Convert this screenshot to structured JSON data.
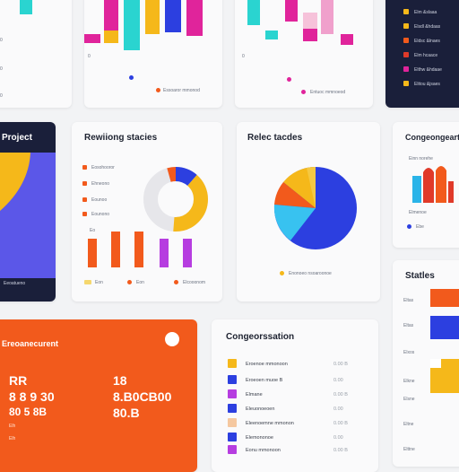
{
  "colors": {
    "orange": "#f25a1c",
    "blue": "#2c3fe0",
    "yellow": "#f5b81a",
    "magenta": "#e0249b",
    "purple": "#b63de0",
    "cyan": "#2ad4d0",
    "navy": "#1a1f3a",
    "lightblue": "#38c2f0",
    "grey": "#e6e6ea"
  },
  "cards": {
    "top_left": {
      "axis_ticks": [
        "0",
        "0",
        "0"
      ]
    },
    "top_mid": {
      "legend": [
        "",
        "Essoaror mmonod"
      ]
    },
    "top_right": {
      "legend": [
        "",
        "Entuoc mmnoeod"
      ]
    },
    "dark_list": {
      "items": [
        "Elm &slaaa",
        "Elsdl &hdaas",
        "Eldsc &lnaes",
        "Elm hcaace",
        "Elthw &hdaae",
        "Elitou &jsaes"
      ]
    },
    "project": {
      "title": "Project",
      "footer": "Eeoatueno"
    },
    "revenue": {
      "title": "Rewiiong stacies",
      "legend": [
        "Eosohooror",
        "Ehneono",
        "Eounoo",
        "Eounono"
      ],
      "axis": "Eo",
      "footer": [
        "Eon",
        "Eon",
        "Elcooonom"
      ]
    },
    "market": {
      "title": "Relec tacdes",
      "footer": "Enonoeo nsoaroonoe"
    },
    "comparison": {
      "title": "Congeongeartio",
      "label": "Einn norehe",
      "footer": [
        "Elmenoe",
        "Ebe"
      ]
    },
    "orange_panel": {
      "title": "Ereoanecurent",
      "left_big": [
        "RR",
        "8 8 9 30",
        "80 5 8B"
      ],
      "left_small": [
        "Elh",
        "Elh"
      ],
      "right_big": [
        "18",
        "8.B0CB00",
        "80.B"
      ]
    },
    "categories": {
      "title": "Congeorssation",
      "rows": [
        {
          "label": "Eroenoe mmonoon",
          "value": "0.00 B"
        },
        {
          "label": "Eroeoen muoe B",
          "value": "0.00"
        },
        {
          "label": "Elmane",
          "value": "0.00 B"
        },
        {
          "label": "Eleuonoeoen",
          "value": "0.00"
        },
        {
          "label": "Eleenoemne mmonon",
          "value": "0.00 B"
        },
        {
          "label": "Elemononoe",
          "value": "0.00"
        },
        {
          "label": "Eonu mmonoon",
          "value": "0.00 B"
        }
      ]
    },
    "stats": {
      "title": "Statles",
      "labels": [
        "Eltas",
        "Eltas",
        "Elxos",
        "Elkne",
        "Elsne",
        "Eltne",
        "Elttne"
      ]
    }
  }
}
